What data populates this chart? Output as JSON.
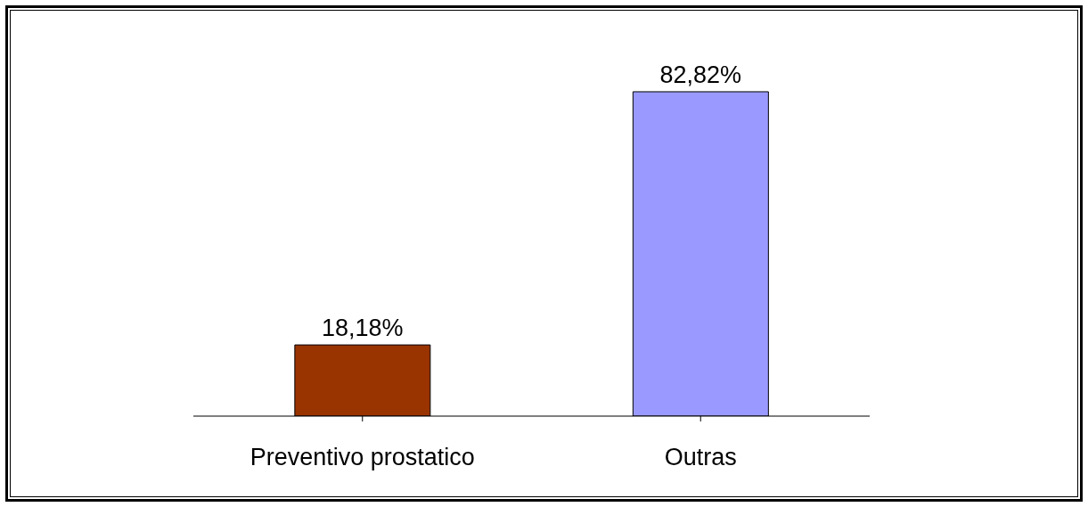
{
  "chart_data": {
    "type": "bar",
    "categories": [
      "Preventivo prostatico",
      "Outras"
    ],
    "values": [
      18.18,
      82.82
    ],
    "colors": [
      "#993300",
      "#9999ff"
    ],
    "value_labels": [
      "18,18%",
      "82,82%"
    ],
    "grid": false,
    "legend": false
  }
}
